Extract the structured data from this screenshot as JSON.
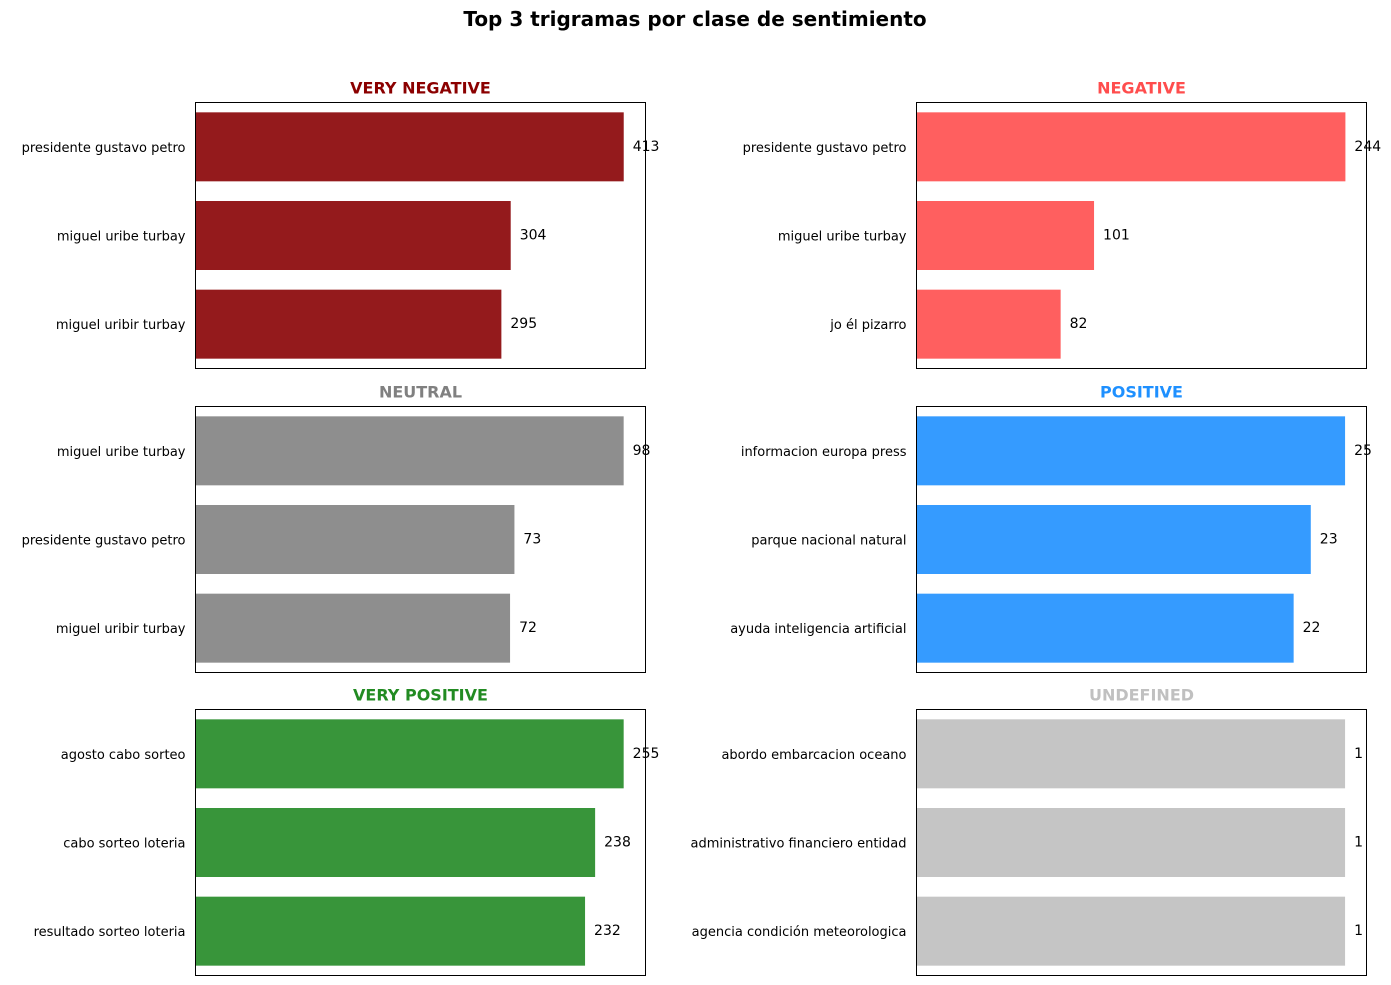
{
  "figure": {
    "suptitle": "Top 3 trigramas por clase de sentimiento"
  },
  "chart_data": [
    {
      "type": "bar",
      "orientation": "horizontal",
      "title": "VERY NEGATIVE",
      "color": "#941a1c",
      "title_color": "#8b0000",
      "categories": [
        "presidente gustavo petro",
        "miguel uribe turbay",
        "miguel uribir turbay"
      ],
      "values": [
        413,
        304,
        295
      ],
      "xlim": [
        0,
        434
      ],
      "xticks": "hidden"
    },
    {
      "type": "bar",
      "orientation": "horizontal",
      "title": "NEGATIVE",
      "color": "#ff5f5f",
      "title_color": "#ff4d4d",
      "categories": [
        "presidente gustavo petro",
        "miguel uribe turbay",
        "jo él pizarro"
      ],
      "values": [
        244,
        101,
        82
      ],
      "xlim": [
        0,
        256
      ],
      "xticks": "hidden"
    },
    {
      "type": "bar",
      "orientation": "horizontal",
      "title": "NEUTRAL",
      "color": "#8e8e8e",
      "title_color": "#808080",
      "categories": [
        "miguel uribe turbay",
        "presidente gustavo petro",
        "miguel uribir turbay"
      ],
      "values": [
        98,
        73,
        72
      ],
      "xlim": [
        0,
        103
      ],
      "xticks": "hidden"
    },
    {
      "type": "bar",
      "orientation": "horizontal",
      "title": "POSITIVE",
      "color": "#359bff",
      "title_color": "#1e90ff",
      "categories": [
        "informacion europa press",
        "parque nacional natural",
        "ayuda inteligencia artificial"
      ],
      "values": [
        25,
        23,
        22
      ],
      "xlim": [
        0,
        26.25
      ],
      "xticks": "hidden"
    },
    {
      "type": "bar",
      "orientation": "horizontal",
      "title": "VERY POSITIVE",
      "color": "#38953a",
      "title_color": "#228b22",
      "categories": [
        "agosto cabo sorteo",
        "cabo sorteo loteria",
        "resultado sorteo loteria"
      ],
      "values": [
        255,
        238,
        232
      ],
      "xlim": [
        0,
        268
      ],
      "xticks": "hidden"
    },
    {
      "type": "bar",
      "orientation": "horizontal",
      "title": "UNDEFINED",
      "color": "#c5c5c5",
      "title_color": "#c0c0c0",
      "categories": [
        "abordo embarcacion oceano",
        "administrativo financiero entidad",
        "agencia condición meteorologica"
      ],
      "values": [
        1,
        1,
        1
      ],
      "xlim": [
        0,
        1.05
      ],
      "xticks": "hidden"
    }
  ]
}
